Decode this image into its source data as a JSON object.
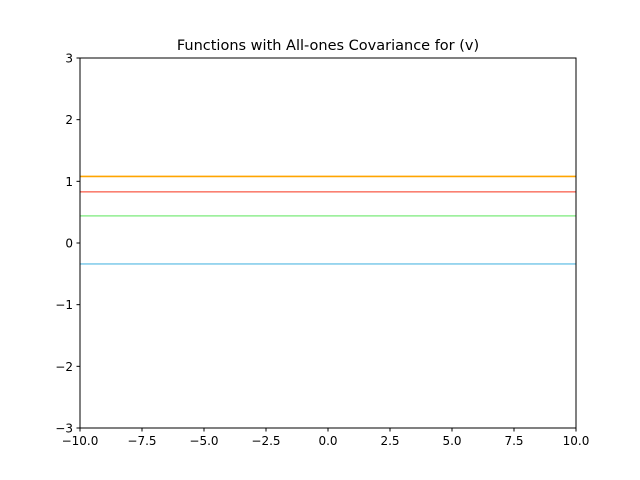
{
  "chart_data": {
    "type": "line",
    "title": "Functions with All-ones Covariance for (v)",
    "xlabel": "",
    "ylabel": "",
    "xlim": [
      -10,
      10
    ],
    "ylim": [
      -3,
      3
    ],
    "grid": false,
    "x_ticks": [
      -10,
      -7.5,
      -5,
      -2.5,
      0,
      2.5,
      5,
      7.5,
      10
    ],
    "x_tick_labels": [
      "−10.0",
      "−7.5",
      "−5.0",
      "−2.5",
      "0.0",
      "2.5",
      "5.0",
      "7.5",
      "10.0"
    ],
    "y_ticks": [
      -3,
      -2,
      -1,
      0,
      1,
      2,
      3
    ],
    "y_tick_labels": [
      "−3",
      "−2",
      "−1",
      "0",
      "1",
      "2",
      "3"
    ],
    "series": [
      {
        "color": "#ffa500",
        "x": [
          -10,
          10
        ],
        "y": [
          1.08,
          1.08
        ]
      },
      {
        "color": "#fa8072",
        "x": [
          -10,
          10
        ],
        "y": [
          0.83,
          0.83
        ]
      },
      {
        "color": "#90ee90",
        "x": [
          -10,
          10
        ],
        "y": [
          0.44,
          0.44
        ]
      },
      {
        "color": "#87ceeb",
        "x": [
          -10,
          10
        ],
        "y": [
          -0.34,
          -0.34
        ]
      }
    ]
  }
}
